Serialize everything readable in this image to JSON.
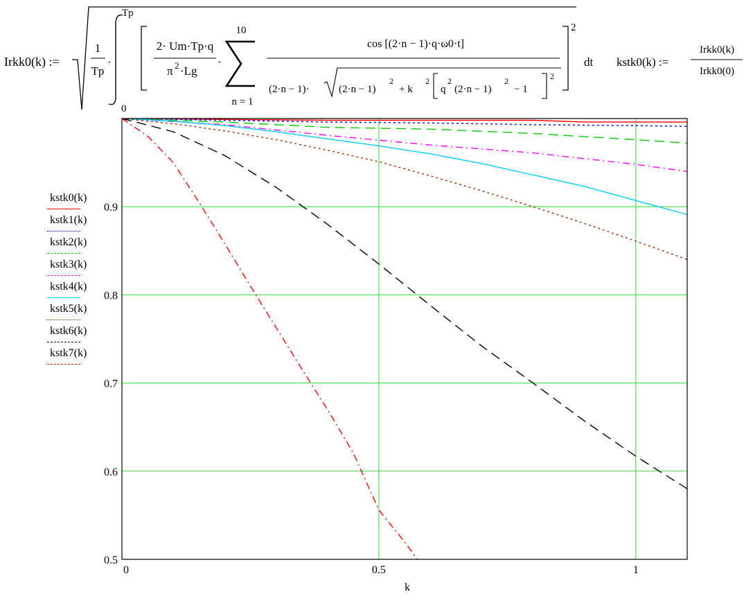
{
  "formula": {
    "lhs": "Irkk0(k) :=",
    "frac1_num": "1",
    "frac1_den": "Tp",
    "int_upper": "Tp",
    "int_lower": "0",
    "coef_num": "2· Um·Tp·q",
    "coef_den_pi": "π",
    "coef_den_pi_exp": "2",
    "coef_den_rest": "·Lg",
    "sum_upper": "10",
    "sum_lower": "n = 1",
    "big_num": "cos [(2·n − 1)·q·ω0·t]",
    "den_part1": "(2·n − 1)·",
    "den_rad_a": "(2·n − 1)",
    "den_exp_2": "2",
    "den_plus": "+ k",
    "den_bracket_q": "q",
    "den_bracket_inner": "(2·n − 1)",
    "den_minus1": "− 1",
    "outer_exp": "2",
    "dt": "dt",
    "kstk_lhs": "kstk0(k) :=",
    "kstk_num": "Irkk0(k)",
    "kstk_den": "Irkk0(0)"
  },
  "chart_data": {
    "type": "line",
    "title": "",
    "xlabel": "k",
    "ylabel": "",
    "xlim": [
      0,
      1.1
    ],
    "ylim": [
      0.5,
      1.0
    ],
    "xticks": [
      0,
      0.5,
      1
    ],
    "xtick_labels": [
      "0",
      "0.5",
      "1"
    ],
    "yticks": [
      0.5,
      0.6,
      0.7,
      0.8,
      0.9
    ],
    "ytick_labels": [
      "0.5",
      "0.6",
      "0.7",
      "0.8",
      "0.9"
    ],
    "grid": true,
    "grid_color": "#33dd33",
    "legend_position": "left",
    "series": [
      {
        "name": "kstk0(k)",
        "color": "#ff0000",
        "dash": "solid",
        "x": [
          0,
          0.2,
          0.4,
          0.6,
          0.8,
          0.9,
          1.0,
          1.1
        ],
        "y": [
          1.0,
          0.999,
          0.998,
          0.998,
          0.998,
          0.996,
          0.996,
          0.996
        ]
      },
      {
        "name": "kstk1(k)",
        "color": "#0000ff",
        "dash": "dot",
        "x": [
          0,
          0.2,
          0.4,
          0.6,
          0.7,
          0.8,
          1.0,
          1.1
        ],
        "y": [
          1.0,
          0.998,
          0.996,
          0.995,
          0.994,
          0.993,
          0.992,
          0.991
        ]
      },
      {
        "name": "kstk2(k)",
        "color": "#00cc00",
        "dash": "longdash",
        "x": [
          0,
          0.2,
          0.4,
          0.6,
          0.8,
          1.0,
          1.1
        ],
        "y": [
          1.0,
          0.996,
          0.99,
          0.988,
          0.983,
          0.976,
          0.972
        ]
      },
      {
        "name": "kstk3(k)",
        "color": "#ff00ff",
        "dash": "dashdot",
        "x": [
          0,
          0.2,
          0.4,
          0.6,
          0.8,
          1.0,
          1.1
        ],
        "y": [
          1.0,
          0.993,
          0.981,
          0.97,
          0.961,
          0.948,
          0.94
        ]
      },
      {
        "name": "kstk4(k)",
        "color": "#00ccff",
        "dash": "solid",
        "x": [
          0,
          0.1,
          0.2,
          0.3,
          0.4,
          0.5,
          0.6,
          0.7,
          0.8,
          0.9,
          1.0,
          1.1
        ],
        "y": [
          1.0,
          0.997,
          0.992,
          0.985,
          0.977,
          0.969,
          0.96,
          0.949,
          0.936,
          0.923,
          0.907,
          0.891
        ]
      },
      {
        "name": "kstk5(k)",
        "color": "#993300",
        "dash": "dot",
        "x": [
          0,
          0.1,
          0.2,
          0.3,
          0.4,
          0.5,
          0.6,
          0.7,
          0.8,
          0.9,
          1.0,
          1.1
        ],
        "y": [
          1.0,
          0.994,
          0.986,
          0.976,
          0.964,
          0.951,
          0.935,
          0.918,
          0.9,
          0.881,
          0.861,
          0.84
        ]
      },
      {
        "name": "kstk6(k)",
        "color": "#000000",
        "dash": "longdash",
        "x": [
          0,
          0.1,
          0.2,
          0.3,
          0.4,
          0.5,
          0.6,
          0.7,
          0.8,
          0.9,
          1.0,
          1.1
        ],
        "y": [
          1.0,
          0.985,
          0.958,
          0.922,
          0.88,
          0.835,
          0.788,
          0.742,
          0.7,
          0.657,
          0.617,
          0.58
        ]
      },
      {
        "name": "kstk7(k)",
        "color": "#ff0000",
        "dash": "dashdot",
        "x": [
          0,
          0.05,
          0.1,
          0.15,
          0.2,
          0.25,
          0.3,
          0.35,
          0.4,
          0.45,
          0.5,
          0.55,
          0.575
        ],
        "y": [
          1.0,
          0.98,
          0.95,
          0.905,
          0.858,
          0.81,
          0.763,
          0.716,
          0.67,
          0.621,
          0.556,
          0.52,
          0.5
        ]
      }
    ]
  }
}
